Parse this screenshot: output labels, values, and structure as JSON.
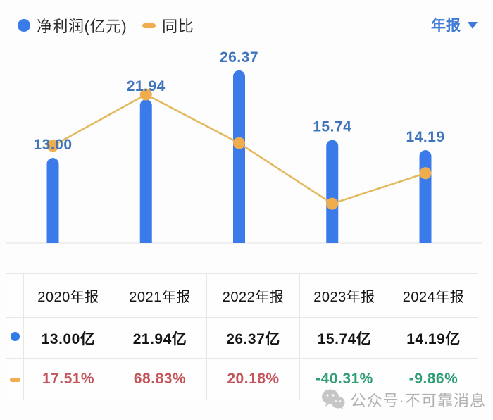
{
  "legend": {
    "series1": {
      "label": "净利润(亿元)",
      "color": "#3b7be9"
    },
    "series2": {
      "label": "同比",
      "color": "#f0ad4d"
    }
  },
  "period_selector": {
    "label": "年报"
  },
  "chart_data": {
    "type": "bar+line",
    "categories": [
      "2020年报",
      "2021年报",
      "2022年报",
      "2023年报",
      "2024年报"
    ],
    "series": [
      {
        "name": "净利润(亿元)",
        "type": "bar",
        "unit": "亿元",
        "values": [
          13.0,
          21.94,
          26.37,
          15.74,
          14.19
        ],
        "labels": [
          "13.00",
          "21.94",
          "26.37",
          "15.74",
          "14.19"
        ],
        "color": "#3b7be9"
      },
      {
        "name": "同比",
        "type": "line",
        "unit": "%",
        "values": [
          17.51,
          68.83,
          20.18,
          -40.31,
          -9.86
        ],
        "color": "#e3b95d",
        "point_color": "#f0ad4d"
      }
    ],
    "title": "",
    "xlabel": "",
    "ylabel": "",
    "legend_position": "top-left",
    "grid": false,
    "value_label_color": "#3e74bc",
    "baseline_color": "#ececec"
  },
  "table": {
    "header": [
      "2020年报",
      "2021年报",
      "2022年报",
      "2023年报",
      "2024年报"
    ],
    "rows": [
      {
        "indicator": "blue-dot",
        "indicator_color": "#2f7ce8",
        "cells": [
          "13.00亿",
          "21.94亿",
          "26.37亿",
          "15.74亿",
          "14.19亿"
        ],
        "cell_colors": [
          "#141414",
          "#141414",
          "#141414",
          "#141414",
          "#141414"
        ]
      },
      {
        "indicator": "yellow-dash",
        "indicator_color": "#f0ad4d",
        "cells": [
          "17.51%",
          "68.83%",
          "20.18%",
          "-40.31%",
          "-9.86%"
        ],
        "cell_colors": [
          "#c4535a",
          "#c4535a",
          "#c4535a",
          "#2f9e74",
          "#2f9e74"
        ]
      }
    ]
  },
  "watermark": {
    "text": "公众号·不可靠消息"
  }
}
